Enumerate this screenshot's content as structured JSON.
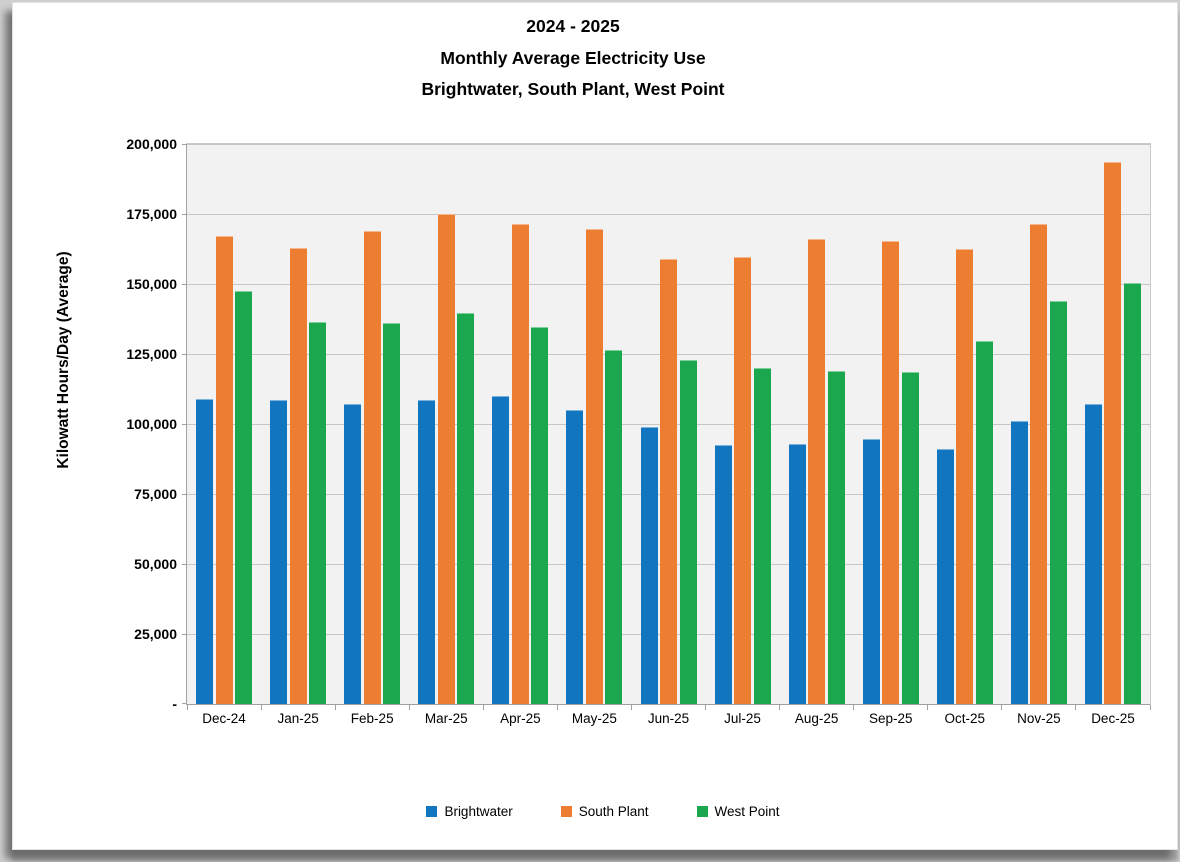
{
  "title": {
    "line1": "2024 - 2025",
    "line2": "Monthly Average Electricity Use",
    "line3": "Brightwater, South Plant, West Point"
  },
  "y_axis": {
    "title": "Kilowatt Hours/Day (Average)",
    "tick_labels": [
      "-",
      "25,000",
      "50,000",
      "75,000",
      "100,000",
      "125,000",
      "150,000",
      "175,000",
      "200,000"
    ]
  },
  "legend": {
    "items": [
      {
        "label": "Brightwater",
        "color": "#1175bf"
      },
      {
        "label": "South Plant",
        "color": "#ed7d31"
      },
      {
        "label": "West Point",
        "color": "#1aa74e"
      }
    ]
  },
  "chart_data": {
    "type": "bar",
    "title": "2024 - 2025 Monthly Average Electricity Use - Brightwater, South Plant, West Point",
    "categories": [
      "Dec-24",
      "Jan-25",
      "Feb-25",
      "Mar-25",
      "Apr-25",
      "May-25",
      "Jun-25",
      "Jul-25",
      "Aug-25",
      "Sep-25",
      "Oct-25",
      "Nov-25",
      "Dec-25"
    ],
    "series": [
      {
        "name": "Brightwater",
        "color": "#1175bf",
        "values": [
          109000,
          108500,
          107000,
          108500,
          110000,
          105000,
          99000,
          92500,
          93000,
          94500,
          91000,
          101000,
          107000
        ]
      },
      {
        "name": "South Plant",
        "color": "#ed7d31",
        "values": [
          167000,
          163000,
          169000,
          175000,
          171500,
          169500,
          159000,
          159500,
          166000,
          165500,
          162500,
          171500,
          193500
        ]
      },
      {
        "name": "West Point",
        "color": "#1aa74e",
        "values": [
          147500,
          136500,
          136000,
          139500,
          134500,
          126500,
          123000,
          120000,
          119000,
          118500,
          129500,
          144000,
          150500
        ]
      }
    ],
    "xlabel": "",
    "ylabel": "Kilowatt Hours/Day (Average)",
    "ylim": [
      0,
      200000
    ],
    "ytick_step": 25000,
    "ytick_labels": [
      "-",
      "25,000",
      "50,000",
      "75,000",
      "100,000",
      "125,000",
      "150,000",
      "175,000",
      "200,000"
    ],
    "grid": true,
    "plot_background": "#f2f2f2",
    "legend_position": "bottom"
  }
}
